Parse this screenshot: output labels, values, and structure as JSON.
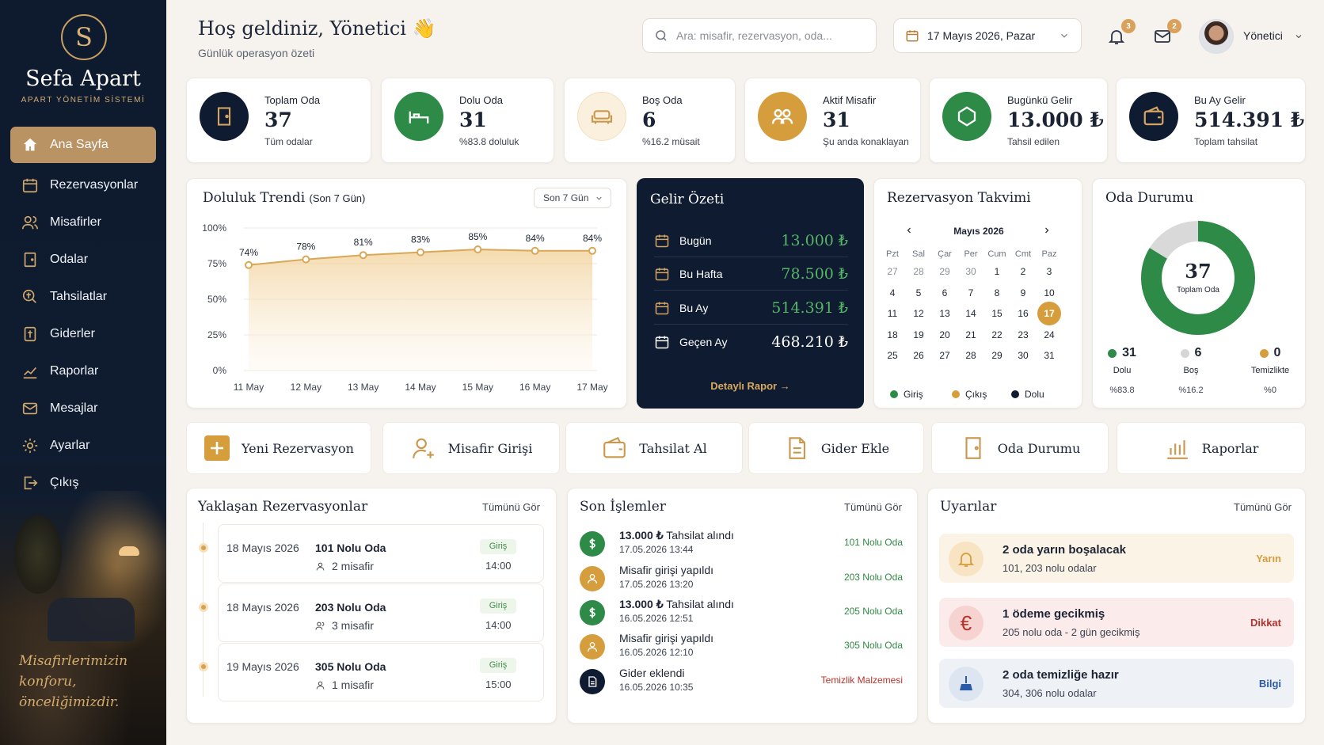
{
  "sidebar": {
    "logo_letter": "S",
    "brand": "Sefa Apart",
    "brand_sub": "APART YÖNETİM SİSTEMİ",
    "items": [
      {
        "label": "Ana Sayfa",
        "icon": "home-icon",
        "active": true
      },
      {
        "label": "Rezervasyonlar",
        "icon": "calendar-icon"
      },
      {
        "label": "Misafirler",
        "icon": "users-icon"
      },
      {
        "label": "Odalar",
        "icon": "door-icon"
      },
      {
        "label": "Tahsilatlar",
        "icon": "coins-icon"
      },
      {
        "label": "Giderler",
        "icon": "receipt-icon"
      },
      {
        "label": "Raporlar",
        "icon": "chart-icon"
      },
      {
        "label": "Mesajlar",
        "icon": "mail-icon"
      },
      {
        "label": "Ayarlar",
        "icon": "gear-icon"
      },
      {
        "label": "Çıkış",
        "icon": "logout-icon"
      }
    ],
    "quote": "Misafirlerimizin\nkonforu,\nönceliğimizdir."
  },
  "header": {
    "title": "Hoş geldiniz, Yönetici",
    "wave": "👋",
    "subtitle": "Günlük operasyon özeti",
    "search_placeholder": "Ara: misafir, rezervasyon, oda...",
    "date": "17 Mayıs 2026, Pazar",
    "notif_count": "3",
    "mail_count": "2",
    "user": "Yönetici"
  },
  "stats": [
    {
      "label": "Toplam Oda",
      "value": "37",
      "sub": "Tüm odalar",
      "icon": "door-icon",
      "color": "#0f1b30"
    },
    {
      "label": "Dolu Oda",
      "value": "31",
      "sub": "%83.8 doluluk",
      "icon": "bed-icon",
      "color": "#2e8b47"
    },
    {
      "label": "Boş Oda",
      "value": "6",
      "sub": "%16.2 müsait",
      "icon": "sofa-icon",
      "color": "#fbf0dd"
    },
    {
      "label": "Aktif Misafir",
      "value": "31",
      "sub": "Şu anda konaklayan",
      "icon": "guests-icon",
      "color": "#d69d3d"
    },
    {
      "label": "Bugünkü Gelir",
      "value": "13.000 ₺",
      "sub": "Tahsil edilen",
      "icon": "coins-icon",
      "color": "#2e8b47"
    },
    {
      "label": "Bu Ay Gelir",
      "value": "514.391 ₺",
      "sub": "Toplam tahsilat",
      "icon": "wallet-icon",
      "color": "#0f1b30"
    }
  ],
  "trend": {
    "title": "Doluluk Trendi",
    "title_sub": "(Son 7 Gün)",
    "select": "Son 7 Gün"
  },
  "chart_data": {
    "type": "area",
    "categories": [
      "11 May",
      "12 May",
      "13 May",
      "14 May",
      "15 May",
      "16 May",
      "17 May"
    ],
    "values": [
      74,
      78,
      81,
      83,
      85,
      84,
      84
    ],
    "data_labels": [
      "74%",
      "78%",
      "81%",
      "83%",
      "85%",
      "84%",
      "84%"
    ],
    "yticks": [
      "100%",
      "75%",
      "50%",
      "25%",
      "0%"
    ],
    "ylim": [
      0,
      100
    ],
    "color": "#d9a758"
  },
  "gelir": {
    "title": "Gelir Özeti",
    "rows": [
      {
        "label": "Bugün",
        "value": "13.000 ₺",
        "icon": "calendar-icon",
        "color": "#56b468"
      },
      {
        "label": "Bu Hafta",
        "value": "78.500 ₺",
        "icon": "calendar-icon",
        "color": "#56b468"
      },
      {
        "label": "Bu Ay",
        "value": "514.391 ₺",
        "icon": "calendar-icon",
        "color": "#56b468"
      },
      {
        "label": "Geçen Ay",
        "value": "468.210 ₺",
        "icon": "calendar-icon",
        "color": "#ffffff"
      }
    ],
    "link": "Detaylı Rapor →"
  },
  "calendar": {
    "title": "Rezervasyon Takvimi",
    "month": "Mayıs 2026",
    "days": [
      "Pzt",
      "Sal",
      "Çar",
      "Per",
      "Cum",
      "Cmt",
      "Paz"
    ],
    "weeks": [
      [
        "27",
        "28",
        "29",
        "30",
        "1",
        "2",
        "3"
      ],
      [
        "4",
        "5",
        "6",
        "7",
        "8",
        "9",
        "10"
      ],
      [
        "11",
        "12",
        "13",
        "14",
        "15",
        "16",
        "17"
      ],
      [
        "18",
        "19",
        "20",
        "21",
        "22",
        "23",
        "24"
      ],
      [
        "25",
        "26",
        "27",
        "28",
        "29",
        "30",
        "31"
      ]
    ],
    "today": "17",
    "legend": [
      {
        "label": "Giriş",
        "color": "#2e8b47"
      },
      {
        "label": "Çıkış",
        "color": "#d69d3d"
      },
      {
        "label": "Dolu",
        "color": "#0f1b30"
      }
    ]
  },
  "oda": {
    "title": "Oda Durumu",
    "total": "37",
    "total_label": "Toplam Oda",
    "occupied_fraction": 0.838,
    "stats": [
      {
        "n": "31",
        "label": "Dolu",
        "pct": "%83.8",
        "color": "#2e8b47"
      },
      {
        "n": "6",
        "label": "Boş",
        "pct": "%16.2",
        "color": "#d6d6d6"
      },
      {
        "n": "0",
        "label": "Temizlikte",
        "pct": "%0",
        "color": "#d69d3d"
      }
    ]
  },
  "actions": [
    {
      "label": "Yeni Rezervasyon",
      "icon": "plus-icon"
    },
    {
      "label": "Misafir Girişi",
      "icon": "user-add-icon"
    },
    {
      "label": "Tahsilat Al",
      "icon": "wallet-icon"
    },
    {
      "label": "Gider Ekle",
      "icon": "document-icon"
    },
    {
      "label": "Oda Durumu",
      "icon": "door-icon"
    },
    {
      "label": "Raporlar",
      "icon": "bar-chart-icon"
    }
  ],
  "upcoming": {
    "title": "Yaklaşan Rezervasyonlar",
    "see_all": "Tümünü Gör",
    "items": [
      {
        "date": "18 Mayıs 2026",
        "room": "101 Nolu Oda",
        "guests": "2 misafir",
        "tag": "Giriş",
        "time": "14:00"
      },
      {
        "date": "18 Mayıs 2026",
        "room": "203 Nolu Oda",
        "guests": "3 misafir",
        "tag": "Giriş",
        "time": "14:00"
      },
      {
        "date": "19 Mayıs 2026",
        "room": "305 Nolu Oda",
        "guests": "1 misafir",
        "tag": "Giriş",
        "time": "15:00"
      }
    ]
  },
  "recent": {
    "title": "Son İşlemler",
    "see_all": "Tümünü Gör",
    "items": [
      {
        "amount": "13.000 ₺",
        "text": "Tahsilat alındı",
        "time": "17.05.2026 13:44",
        "ref": "101 Nolu Oda",
        "icon": "dollar-icon",
        "color": "#2e8b47",
        "ref_color": "#2f8a42"
      },
      {
        "amount": "",
        "text": "Misafir girişi yapıldı",
        "time": "17.05.2026 13:20",
        "ref": "203 Nolu Oda",
        "icon": "user-icon",
        "color": "#d69d3d",
        "ref_color": "#2f8a42"
      },
      {
        "amount": "13.000 ₺",
        "text": "Tahsilat alındı",
        "time": "16.05.2026 12:51",
        "ref": "205 Nolu Oda",
        "icon": "dollar-icon",
        "color": "#2e8b47",
        "ref_color": "#2f8a42"
      },
      {
        "amount": "",
        "text": "Misafir girişi yapıldı",
        "time": "16.05.2026 12:10",
        "ref": "305 Nolu Oda",
        "icon": "user-icon",
        "color": "#d69d3d",
        "ref_color": "#2f8a42"
      },
      {
        "amount": "",
        "text": "Gider eklendi",
        "time": "16.05.2026 10:35",
        "ref": "Temizlik Malzemesi",
        "icon": "document-icon",
        "color": "#0f1b30",
        "ref_color": "#b5332b"
      }
    ]
  },
  "alerts": {
    "title": "Uyarılar",
    "see_all": "Tümünü Gör",
    "items": [
      {
        "title": "2 oda yarın boşalacak",
        "sub": "101, 203 nolu odalar",
        "tag": "Yarın",
        "icon": "bell-icon",
        "bg": "#fbf3e6",
        "icon_bg": "#f8e4c3",
        "tag_color": "#d69d3d"
      },
      {
        "title": "1 ödeme gecikmiş",
        "sub": "205 nolu oda - 2 gün gecikmiş",
        "tag": "Dikkat",
        "icon": "euro-icon",
        "bg": "#fbeceb",
        "icon_bg": "#f6d3d0",
        "tag_color": "#b5332b"
      },
      {
        "title": "2 oda temizliğe hazır",
        "sub": "304, 306 nolu odalar",
        "tag": "Bilgi",
        "icon": "broom-icon",
        "bg": "#eef2f7",
        "icon_bg": "#dde5f0",
        "tag_color": "#2b5aa8"
      }
    ]
  }
}
